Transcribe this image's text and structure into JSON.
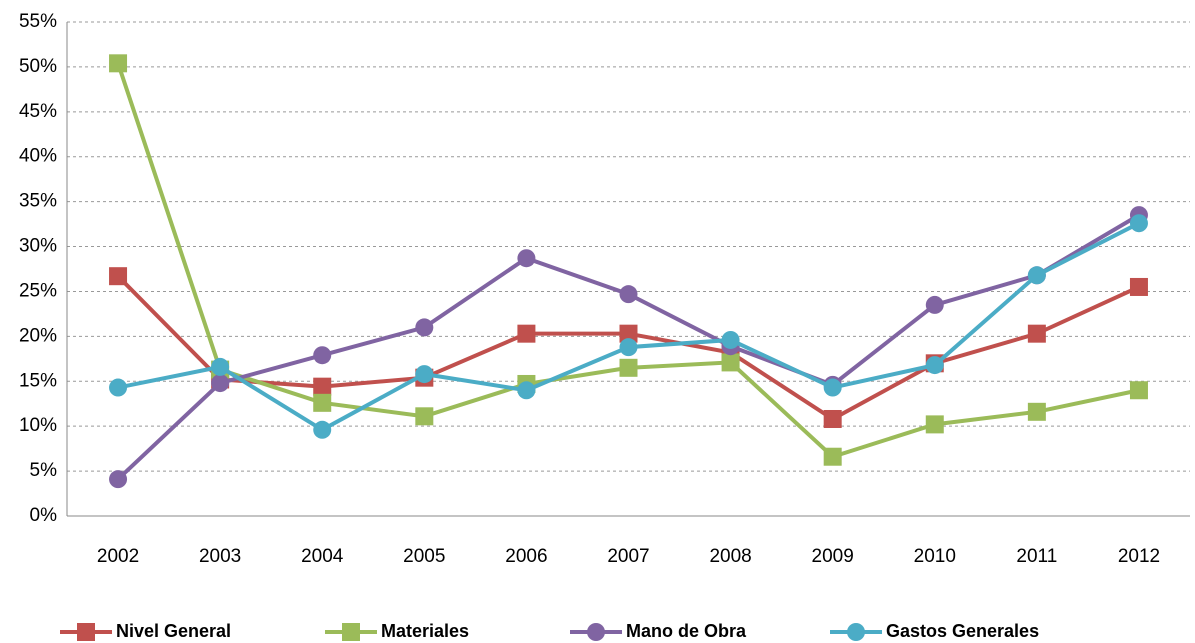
{
  "chart_data": {
    "type": "line",
    "categories": [
      "2002",
      "2003",
      "2004",
      "2005",
      "2006",
      "2007",
      "2008",
      "2009",
      "2010",
      "2011",
      "2012"
    ],
    "series": [
      {
        "name": "Nivel General",
        "color": "#c0504d",
        "marker": "square",
        "values": [
          26.7,
          15.2,
          14.4,
          15.4,
          20.3,
          20.3,
          18.2,
          10.8,
          17.0,
          20.3,
          25.5
        ]
      },
      {
        "name": "Materiales",
        "color": "#9bbb59",
        "marker": "square",
        "values": [
          50.4,
          16.3,
          12.6,
          11.1,
          14.7,
          16.5,
          17.1,
          6.6,
          10.2,
          11.6,
          14.0
        ]
      },
      {
        "name": "Mano de Obra",
        "color": "#8064a2",
        "marker": "circle",
        "values": [
          4.1,
          14.8,
          17.9,
          21.0,
          28.7,
          24.7,
          18.9,
          14.6,
          23.5,
          26.8,
          33.5
        ]
      },
      {
        "name": "Gastos Generales",
        "color": "#4bacc6",
        "marker": "circle",
        "values": [
          14.3,
          16.6,
          9.6,
          15.8,
          14.0,
          18.8,
          19.6,
          14.3,
          16.8,
          26.8,
          32.6
        ]
      }
    ],
    "ylim": [
      0,
      55
    ],
    "yticks": [
      {
        "value": 0,
        "label": "0%"
      },
      {
        "value": 5,
        "label": "5%"
      },
      {
        "value": 10,
        "label": "10%"
      },
      {
        "value": 15,
        "label": "15%"
      },
      {
        "value": 20,
        "label": "20%"
      },
      {
        "value": 25,
        "label": "25%"
      },
      {
        "value": 30,
        "label": "30%"
      },
      {
        "value": 35,
        "label": "35%"
      },
      {
        "value": 40,
        "label": "40%"
      },
      {
        "value": 45,
        "label": "45%"
      },
      {
        "value": 50,
        "label": "50%"
      },
      {
        "value": 55,
        "label": "55%"
      }
    ],
    "grid": true
  }
}
